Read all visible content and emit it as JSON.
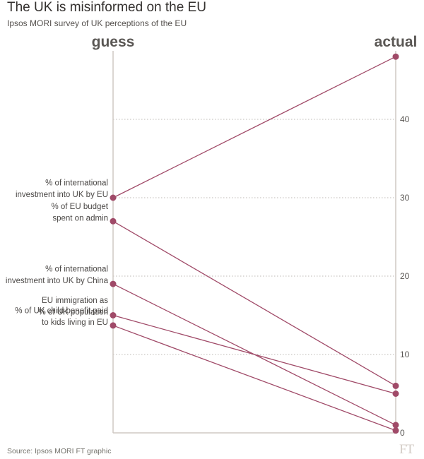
{
  "title": "The UK is misinformed on the EU",
  "subtitle": "Ipsos MORI survey of UK perceptions of the EU",
  "source": "Source: Ipsos MORI FT graphic",
  "logo": "FT",
  "colors": {
    "series": "#a04a68",
    "axis": "#cfc9c4",
    "grid": "#bdb8b4"
  },
  "chart_data": {
    "type": "slope",
    "title": "The UK is misinformed on the EU",
    "subtitle": "Ipsos MORI survey of UK perceptions of the EU",
    "left_label": "guess",
    "right_label": "actual",
    "ylim": [
      0,
      48
    ],
    "yticks": [
      0,
      10,
      20,
      30,
      40
    ],
    "grid": true,
    "series": [
      {
        "name": "% of international investment into UK by EU",
        "label_lines": [
          "% of international",
          "investment into UK by EU"
        ],
        "guess": 30,
        "actual": 48
      },
      {
        "name": "% of EU budget spent on admin",
        "label_lines": [
          "% of EU budget",
          "spent on admin"
        ],
        "guess": 27,
        "actual": 6
      },
      {
        "name": "% of international investment into UK by China",
        "label_lines": [
          "% of international",
          "investment into UK by China"
        ],
        "guess": 19,
        "actual": 1
      },
      {
        "name": "EU immigration as % of UK population",
        "label_lines": [
          "EU immigration as",
          "% of UK population"
        ],
        "guess": 15,
        "actual": 5
      },
      {
        "name": "% of UK child benefit paid to kids living in EU",
        "label_lines": [
          "% of UK child benefit paid",
          "to kids living in EU"
        ],
        "guess": 13.7,
        "actual": 0.3
      }
    ]
  }
}
